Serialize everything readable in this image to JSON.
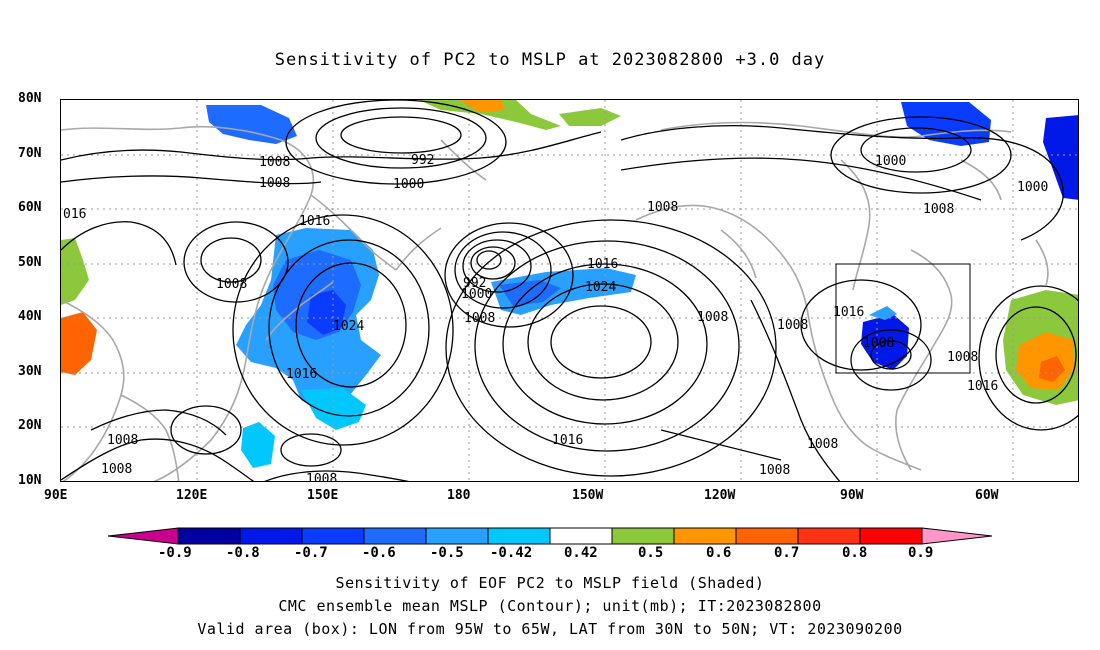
{
  "title": "Sensitivity of PC2 to MSLP at 2023082800 +3.0 day",
  "lat_labels": [
    "80N",
    "70N",
    "60N",
    "50N",
    "40N",
    "30N",
    "20N",
    "10N"
  ],
  "lon_labels": [
    "90E",
    "120E",
    "150E",
    "180",
    "150W",
    "120W",
    "90W",
    "60W"
  ],
  "contour_labels": {
    "c1": "1008",
    "c2": "992",
    "c3": "1008",
    "c4": "1000",
    "c5": "016",
    "c6": "1016",
    "c7": "1008",
    "c8": "1024",
    "c9": "1016",
    "c10": "992",
    "c11": "1000",
    "c12": "1008",
    "c13": "1016",
    "c14": "1024",
    "c15": "1008",
    "c16": "1008",
    "c17": "1016",
    "c18": "1008",
    "c19": "1008",
    "c20": "1008",
    "c21": "1000",
    "c22": "1008",
    "c23": "1000",
    "c24": "1016",
    "c25": "1008",
    "c26": "1008",
    "c27": "1016",
    "c28": "1008",
    "c29": "1008",
    "c30": "1016",
    "c31": "1008",
    "c32": "1008"
  },
  "colorbar": {
    "labels": [
      "-0.9",
      "-0.8",
      "-0.7",
      "-0.6",
      "-0.5",
      "-0.42",
      "0.42",
      "0.5",
      "0.6",
      "0.7",
      "0.8",
      "0.9"
    ],
    "colors": [
      "#0000a0",
      "#0018e8",
      "#0a3cff",
      "#1e6cff",
      "#28a0ff",
      "#00c8ff",
      "#ffffff",
      "#8cc83c",
      "#ff9600",
      "#ff6400",
      "#ff3214",
      "#ff0000"
    ],
    "low_end_color": "#c8008c",
    "high_end_color": "#ff96c8"
  },
  "captions": {
    "line1": "Sensitivity of EOF PC2 to MSLP field (Shaded)",
    "line2": "CMC ensemble mean MSLP (Contour); unit(mb); IT:2023082800",
    "line3": "Valid area (box): LON from 95W to 65W, LAT from 30N to 50N; VT: 2023090200"
  }
}
